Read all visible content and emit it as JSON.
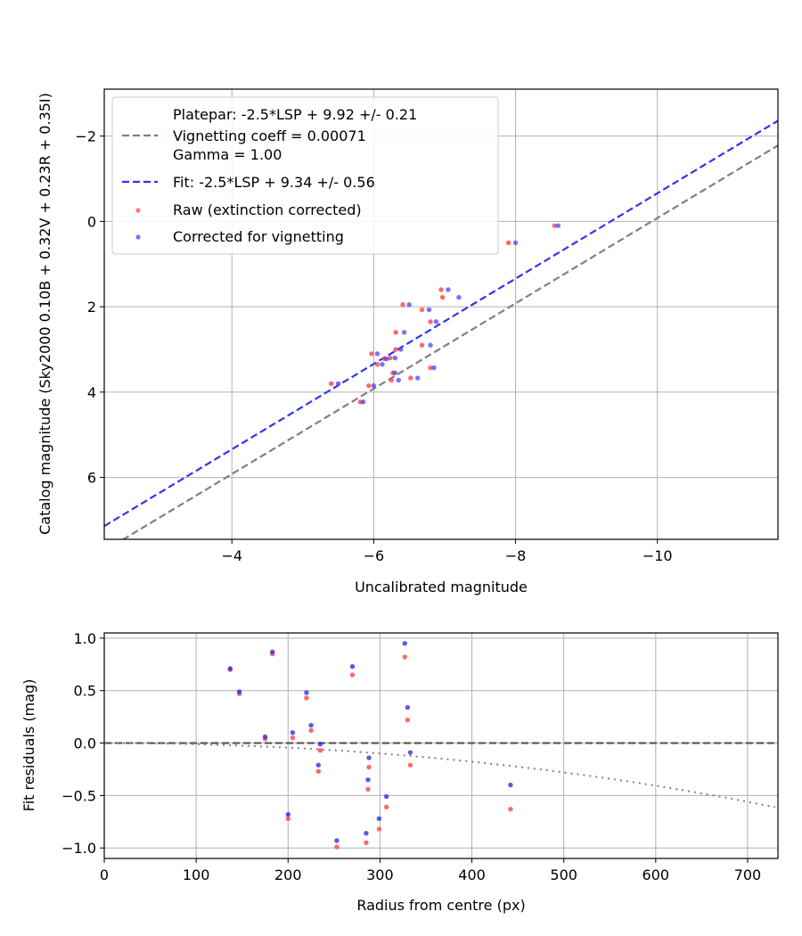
{
  "chart_data": [
    {
      "type": "scatter",
      "xlabel": "Uncalibrated magnitude",
      "ylabel": "Catalog magnitude (Sky2000 0.10B + 0.32V + 0.23R + 0.35I)",
      "xlim": [
        -2.2,
        -11.7
      ],
      "ylim": [
        7.45,
        -3.1
      ],
      "grid": true,
      "xticks": [
        -4,
        -6,
        -8,
        -10
      ],
      "xtick_labels": [
        "−4",
        "−6",
        "−8",
        "−10"
      ],
      "yticks": [
        -2,
        0,
        2,
        4,
        6
      ],
      "ytick_labels": [
        "−2",
        "0",
        "2",
        "4",
        "6"
      ],
      "legend_position": "top-left",
      "lines": [
        {
          "name": "platepar",
          "legend": [
            "Platepar: -2.5*LSP + 9.92 +/- 0.21",
            "Vignetting coeff = 0.00071",
            "Gamma = 1.00"
          ],
          "slope": 1,
          "intercept": 9.92,
          "color": "#808080",
          "style": "dashed"
        },
        {
          "name": "fit",
          "legend": [
            "Fit: -2.5*LSP + 9.34 +/- 0.56"
          ],
          "slope": 1,
          "intercept": 9.34,
          "color": "#3333ee",
          "style": "dashed"
        }
      ],
      "series": [
        {
          "name": "Raw (extinction corrected)",
          "color": "#ff4444",
          "points": [
            [
              -8.55,
              0.1
            ],
            [
              -7.9,
              0.5
            ],
            [
              -6.95,
              1.6
            ],
            [
              -6.97,
              1.78
            ],
            [
              -6.41,
              1.95
            ],
            [
              -6.68,
              2.07
            ],
            [
              -6.8,
              2.35
            ],
            [
              -6.31,
              2.6
            ],
            [
              -6.68,
              2.9
            ],
            [
              -6.31,
              3.0
            ],
            [
              -6.23,
              3.2
            ],
            [
              -6.15,
              3.22
            ],
            [
              -5.97,
              3.1
            ],
            [
              -6.05,
              3.35
            ],
            [
              -6.27,
              3.55
            ],
            [
              -6.8,
              3.43
            ],
            [
              -5.4,
              3.8
            ],
            [
              -5.93,
              3.85
            ],
            [
              -6.25,
              3.72
            ],
            [
              -6.52,
              3.67
            ],
            [
              -5.81,
              4.23
            ]
          ]
        },
        {
          "name": "Corrected for vignetting",
          "color": "#4444ff",
          "points": [
            [
              -8.6,
              0.1
            ],
            [
              -8.0,
              0.5
            ],
            [
              -7.05,
              1.6
            ],
            [
              -7.2,
              1.78
            ],
            [
              -6.5,
              1.95
            ],
            [
              -6.78,
              2.07
            ],
            [
              -6.88,
              2.35
            ],
            [
              -6.43,
              2.6
            ],
            [
              -6.8,
              2.9
            ],
            [
              -6.38,
              3.0
            ],
            [
              -6.3,
              3.2
            ],
            [
              -6.18,
              3.22
            ],
            [
              -6.05,
              3.1
            ],
            [
              -6.12,
              3.35
            ],
            [
              -6.3,
              3.55
            ],
            [
              -6.85,
              3.43
            ],
            [
              -5.5,
              3.8
            ],
            [
              -6.0,
              3.85
            ],
            [
              -6.35,
              3.72
            ],
            [
              -6.62,
              3.67
            ],
            [
              -5.85,
              4.23
            ]
          ]
        }
      ]
    },
    {
      "type": "scatter",
      "xlabel": "Radius from centre (px)",
      "ylabel": "Fit residuals (mag)",
      "xlim": [
        0,
        733
      ],
      "ylim": [
        -1.1,
        1.05
      ],
      "grid": true,
      "xticks": [
        0,
        100,
        200,
        300,
        400,
        500,
        600,
        700
      ],
      "xtick_labels": [
        "0",
        "100",
        "200",
        "300",
        "400",
        "500",
        "600",
        "700"
      ],
      "yticks": [
        1.0,
        0.5,
        0.0,
        -0.5,
        -1.0
      ],
      "ytick_labels": [
        "1.0",
        "0.5",
        "0.0",
        "−0.5",
        "−1.0"
      ],
      "reference_line": {
        "y": 0,
        "color": "#555555",
        "style": "dashed"
      },
      "vignetting_curve": {
        "coeff": 0.00071,
        "color": "#808080",
        "style": "dotted"
      },
      "series": [
        {
          "name": "Raw",
          "color": "#ff4444",
          "points": [
            [
              137,
              0.7
            ],
            [
              147,
              0.47
            ],
            [
              183,
              0.85
            ],
            [
              175,
              0.04
            ],
            [
              205,
              0.05
            ],
            [
              200,
              -0.72
            ],
            [
              220,
              0.43
            ],
            [
              225,
              0.12
            ],
            [
              233,
              -0.27
            ],
            [
              235,
              -0.07
            ],
            [
              253,
              -0.99
            ],
            [
              270,
              0.65
            ],
            [
              285,
              -0.95
            ],
            [
              288,
              -0.23
            ],
            [
              287,
              -0.44
            ],
            [
              299,
              -0.82
            ],
            [
              307,
              -0.61
            ],
            [
              327,
              0.82
            ],
            [
              330,
              0.22
            ],
            [
              333,
              -0.21
            ],
            [
              442,
              -0.63
            ]
          ]
        },
        {
          "name": "Corrected",
          "color": "#2222ee",
          "points": [
            [
              137,
              0.71
            ],
            [
              147,
              0.49
            ],
            [
              183,
              0.87
            ],
            [
              175,
              0.06
            ],
            [
              205,
              0.1
            ],
            [
              200,
              -0.68
            ],
            [
              220,
              0.48
            ],
            [
              225,
              0.17
            ],
            [
              233,
              -0.21
            ],
            [
              235,
              -0.01
            ],
            [
              253,
              -0.93
            ],
            [
              270,
              0.73
            ],
            [
              285,
              -0.86
            ],
            [
              288,
              -0.14
            ],
            [
              287,
              -0.35
            ],
            [
              299,
              -0.72
            ],
            [
              307,
              -0.51
            ],
            [
              327,
              0.95
            ],
            [
              330,
              0.34
            ],
            [
              333,
              -0.09
            ],
            [
              442,
              -0.4
            ]
          ]
        }
      ]
    }
  ]
}
